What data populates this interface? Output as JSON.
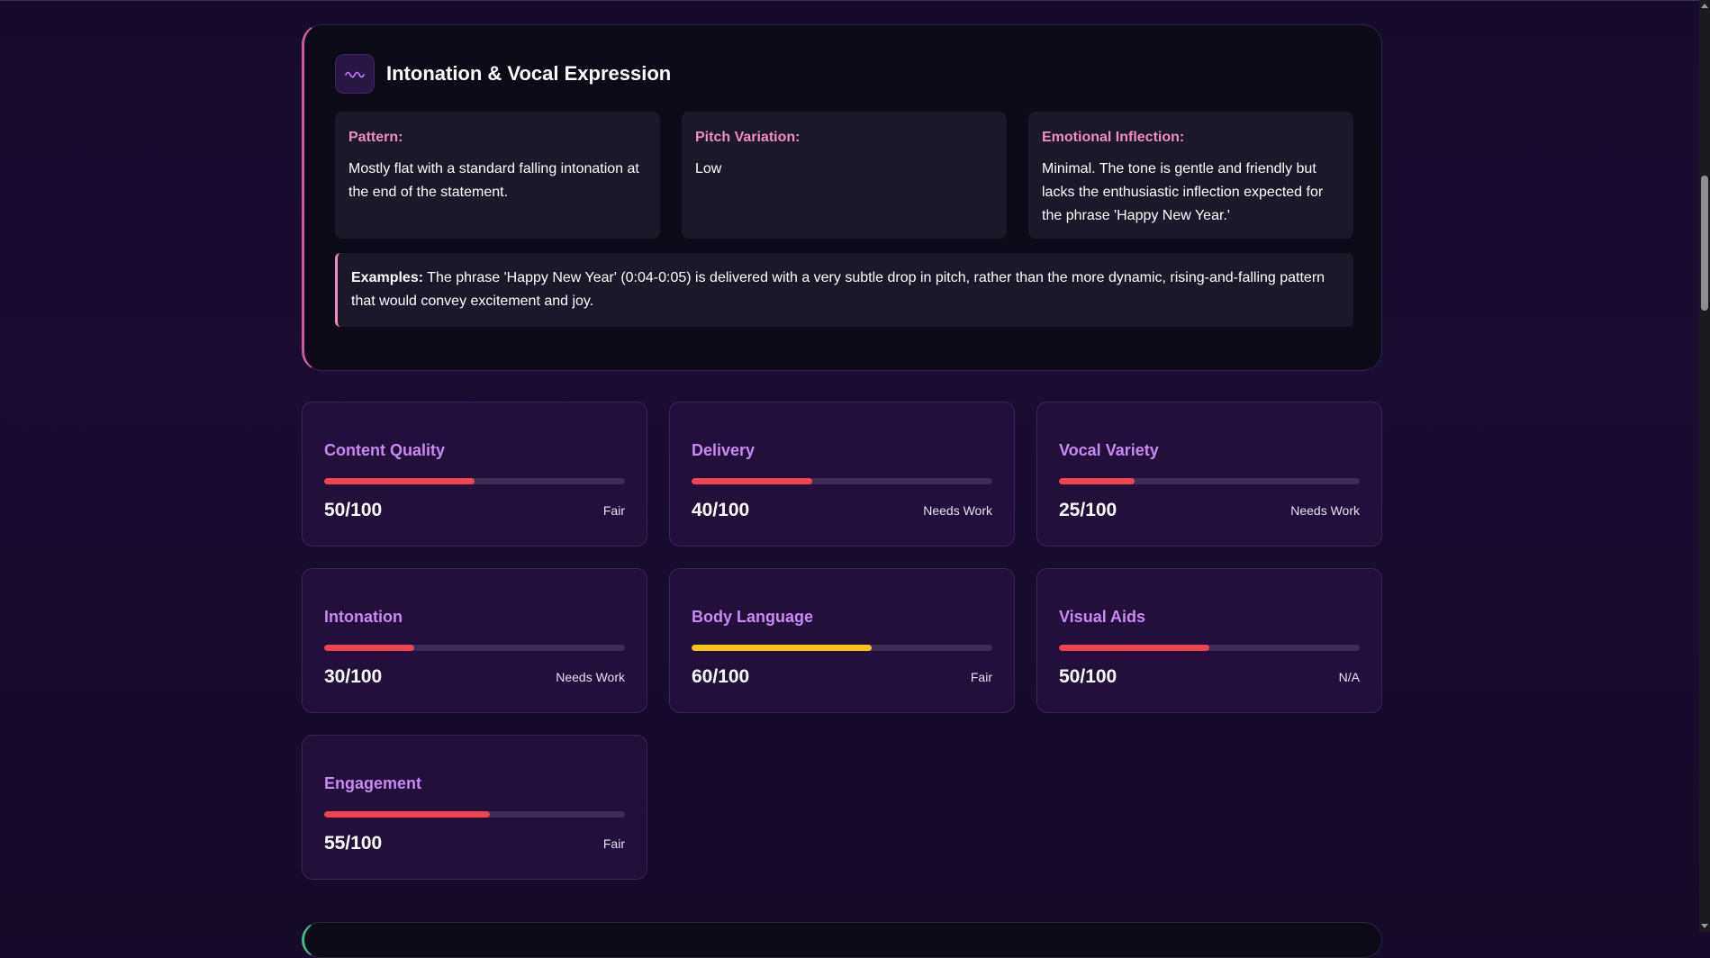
{
  "intonation": {
    "title": "Intonation & Vocal Expression",
    "icon": "waveform-icon",
    "accent": "#d2589b",
    "details": [
      {
        "label": "Pattern:",
        "text": "Mostly flat with a standard falling intonation at the end of the statement."
      },
      {
        "label": "Pitch Variation:",
        "text": "Low"
      },
      {
        "label": "Emotional Inflection:",
        "text": "Minimal. The tone is gentle and friendly but lacks the enthusiastic inflection expected for the phrase 'Happy New Year.'"
      }
    ],
    "examples_label": "Examples:",
    "examples_text": " The phrase 'Happy New Year' (0:04-0:05) is delivered with a very subtle drop in pitch, rather than the more dynamic, rising-and-falling pattern that would convey excitement and joy."
  },
  "metrics": [
    {
      "name": "Content Quality",
      "score": "50/100",
      "value": 50,
      "rating": "Fair",
      "color": "#f0444f"
    },
    {
      "name": "Delivery",
      "score": "40/100",
      "value": 40,
      "rating": "Needs Work",
      "color": "#f0444f"
    },
    {
      "name": "Vocal Variety",
      "score": "25/100",
      "value": 25,
      "rating": "Needs Work",
      "color": "#f0444f"
    },
    {
      "name": "Intonation",
      "score": "30/100",
      "value": 30,
      "rating": "Needs Work",
      "color": "#f0444f"
    },
    {
      "name": "Body Language",
      "score": "60/100",
      "value": 60,
      "rating": "Fair",
      "color": "#f5c518"
    },
    {
      "name": "Visual Aids",
      "score": "50/100",
      "value": 50,
      "rating": "N/A",
      "color": "#f0444f"
    },
    {
      "name": "Engagement",
      "score": "55/100",
      "value": 55,
      "rating": "Fair",
      "color": "#f0444f"
    }
  ]
}
